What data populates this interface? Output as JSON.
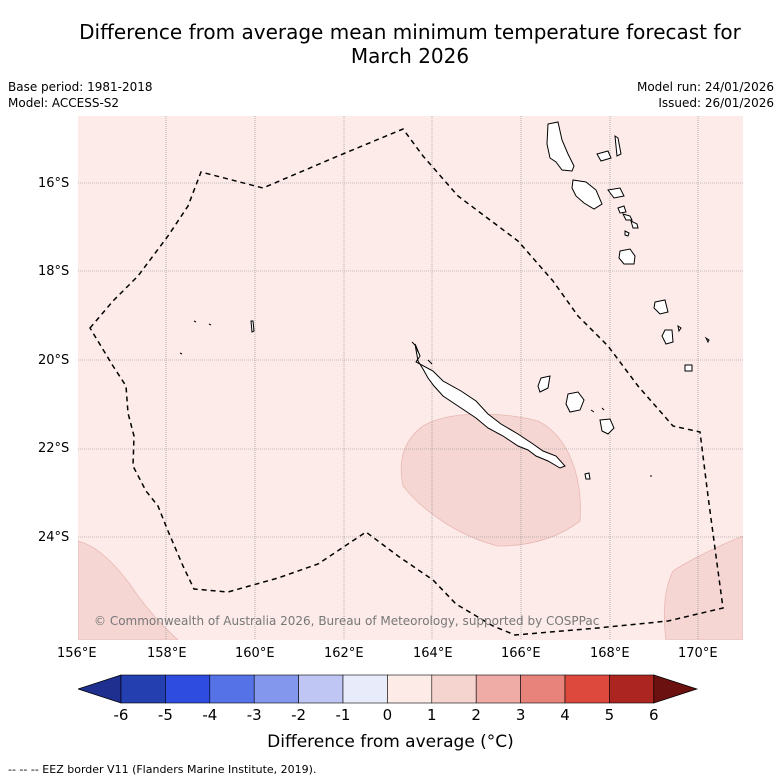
{
  "title_line1": "Difference from average mean minimum temperature forecast for",
  "title_line2": "March 2026",
  "base_period": "Base period: 1981-2018",
  "model": "Model: ACCESS-S2",
  "model_run": "Model run: 24/01/2026",
  "issued": "Issued: 26/01/2026",
  "lat_labels": [
    "16°S",
    "18°S",
    "20°S",
    "22°S",
    "24°S"
  ],
  "lon_labels": [
    "156°E",
    "158°E",
    "160°E",
    "162°E",
    "164°E",
    "166°E",
    "168°E",
    "170°E"
  ],
  "copyright": "© Commonwealth of Australia 2026, Bureau of Meteorology, supported by COSPPac",
  "colorbar": {
    "ticks": [
      "-6",
      "-5",
      "-4",
      "-3",
      "-2",
      "-1",
      "0",
      "1",
      "2",
      "3",
      "4",
      "5",
      "6"
    ],
    "colors": [
      "#1f2f8f",
      "#2440b0",
      "#2e4de0",
      "#5572e6",
      "#8397ec",
      "#bfc6f3",
      "#e8ebfa",
      "#fcebe6",
      "#f5d3cf",
      "#efaca6",
      "#e8837b",
      "#dd4a3d",
      "#ad2520",
      "#6b1210"
    ],
    "label": "Difference from average (°C)"
  },
  "colors": {
    "background_anomaly": "#fcebe9",
    "warm_anomaly": "#f5d6d3"
  },
  "footnote": "--  --  -- EEZ border V11 (Flanders Marine Institute, 2019)."
}
